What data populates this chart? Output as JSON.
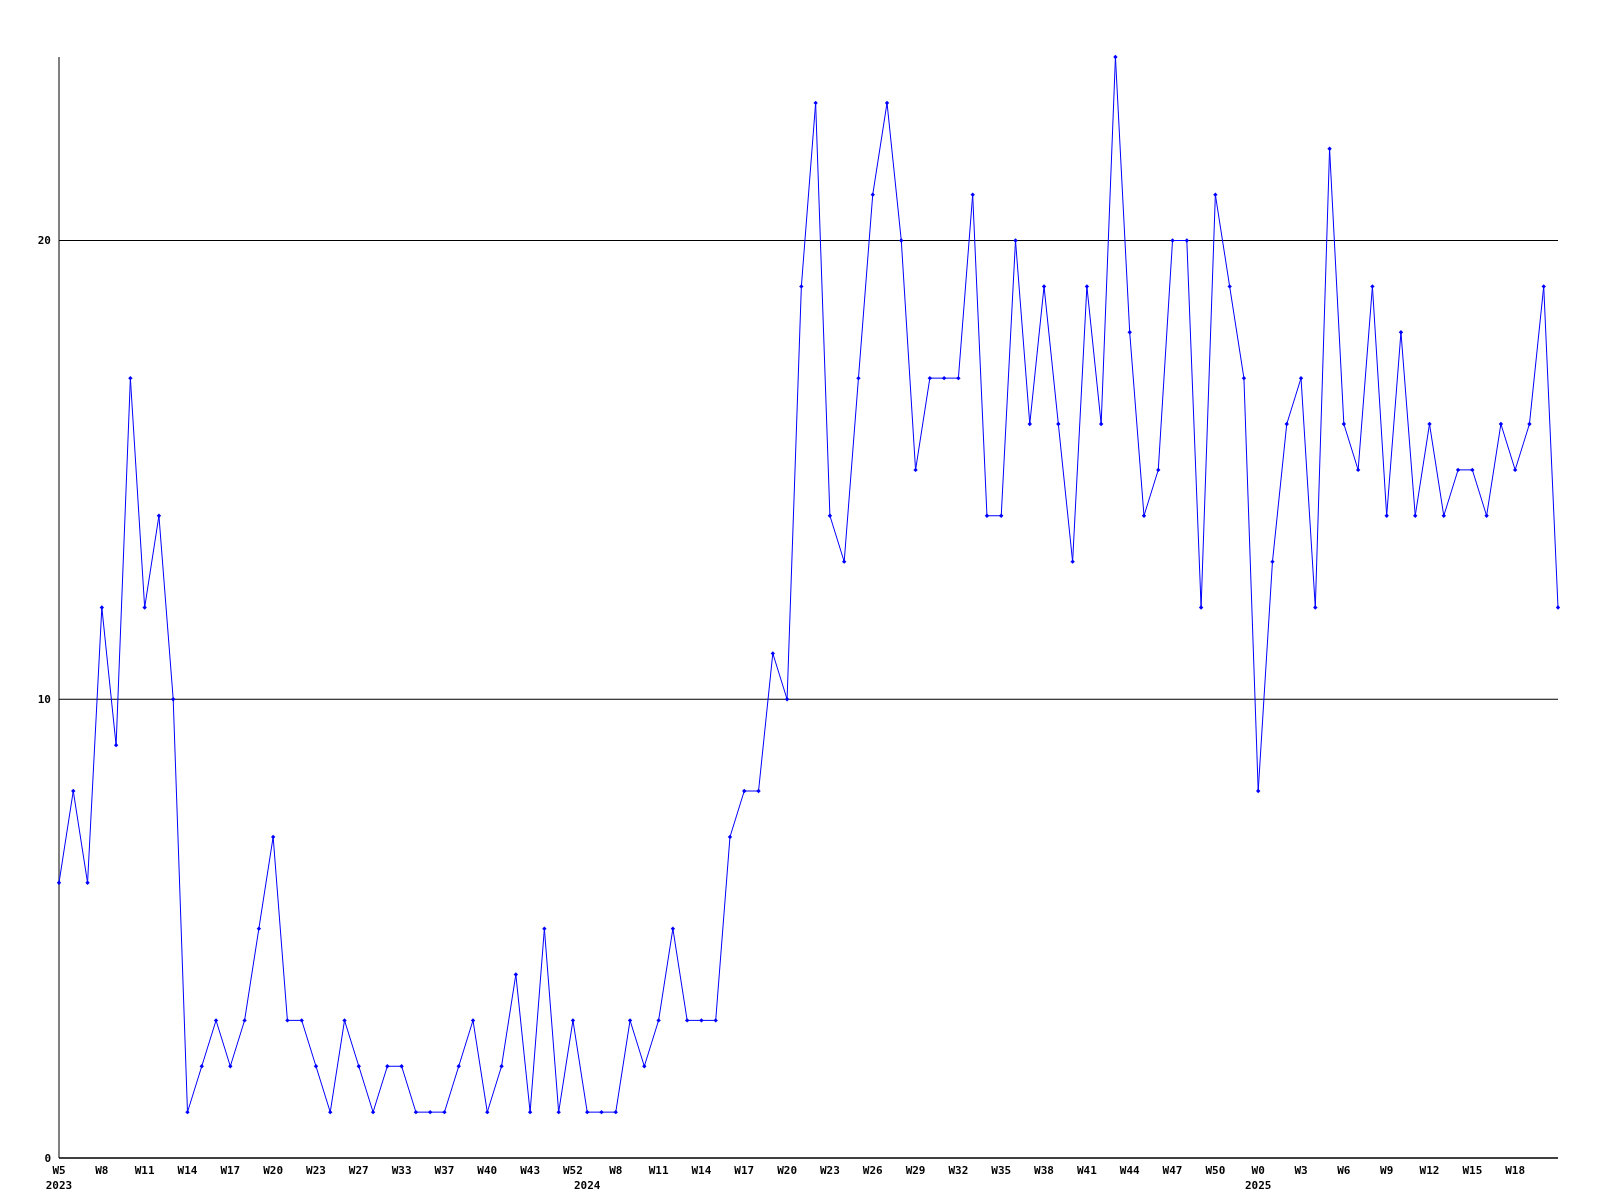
{
  "chart_data": {
    "type": "line",
    "categories": [
      "W5\n2023",
      null,
      null,
      "W8",
      null,
      null,
      "W11",
      null,
      null,
      "W14",
      null,
      null,
      "W17",
      null,
      null,
      "W20",
      null,
      null,
      "W23",
      null,
      null,
      "W27",
      null,
      null,
      "W33",
      null,
      null,
      "W37",
      null,
      null,
      "W40",
      null,
      null,
      "W43",
      null,
      null,
      "W52",
      "\n2024",
      null,
      "W8",
      null,
      null,
      "W11",
      null,
      null,
      "W14",
      null,
      null,
      "W17",
      null,
      null,
      "W20",
      null,
      null,
      "W23",
      null,
      null,
      "W26",
      null,
      null,
      "W29",
      null,
      null,
      "W32",
      null,
      null,
      "W35",
      null,
      null,
      "W38",
      null,
      null,
      "W41",
      null,
      null,
      "W44",
      null,
      null,
      "W47",
      null,
      null,
      "W50",
      null,
      null,
      "W0\n2025",
      null,
      null,
      "W3",
      null,
      null,
      "W6",
      null,
      null,
      "W9",
      null,
      null,
      "W12",
      null,
      null,
      "W15",
      null,
      null,
      "W18",
      null,
      null,
      null
    ],
    "series": [
      {
        "color": "#0000ff",
        "values": [
          6,
          8,
          6,
          12,
          9,
          17,
          12,
          14,
          10,
          1,
          2,
          3,
          2,
          3,
          5,
          7,
          3,
          3,
          2,
          1,
          3,
          2,
          1,
          2,
          2,
          1,
          1,
          1,
          2,
          3,
          1,
          2,
          4,
          1,
          5,
          1,
          3,
          1,
          1,
          1,
          3,
          2,
          3,
          5,
          3,
          3,
          3,
          7,
          8,
          8,
          11,
          10,
          19,
          23,
          14,
          13,
          17,
          21,
          23,
          20,
          15,
          17,
          17,
          17,
          21,
          14,
          14,
          20,
          16,
          19,
          16,
          13,
          19,
          16,
          24,
          18,
          14,
          15,
          20,
          20,
          12,
          21,
          19,
          17,
          8,
          13,
          16,
          17,
          12,
          22,
          16,
          15,
          19,
          14,
          18,
          14,
          16,
          14,
          15,
          15,
          14,
          16,
          15,
          16,
          19,
          12
        ]
      }
    ],
    "ylim": [
      0,
      24
    ],
    "yticks": [
      0,
      10,
      20
    ],
    "grid": "y",
    "marker": "diamond",
    "line_style": "solid"
  }
}
